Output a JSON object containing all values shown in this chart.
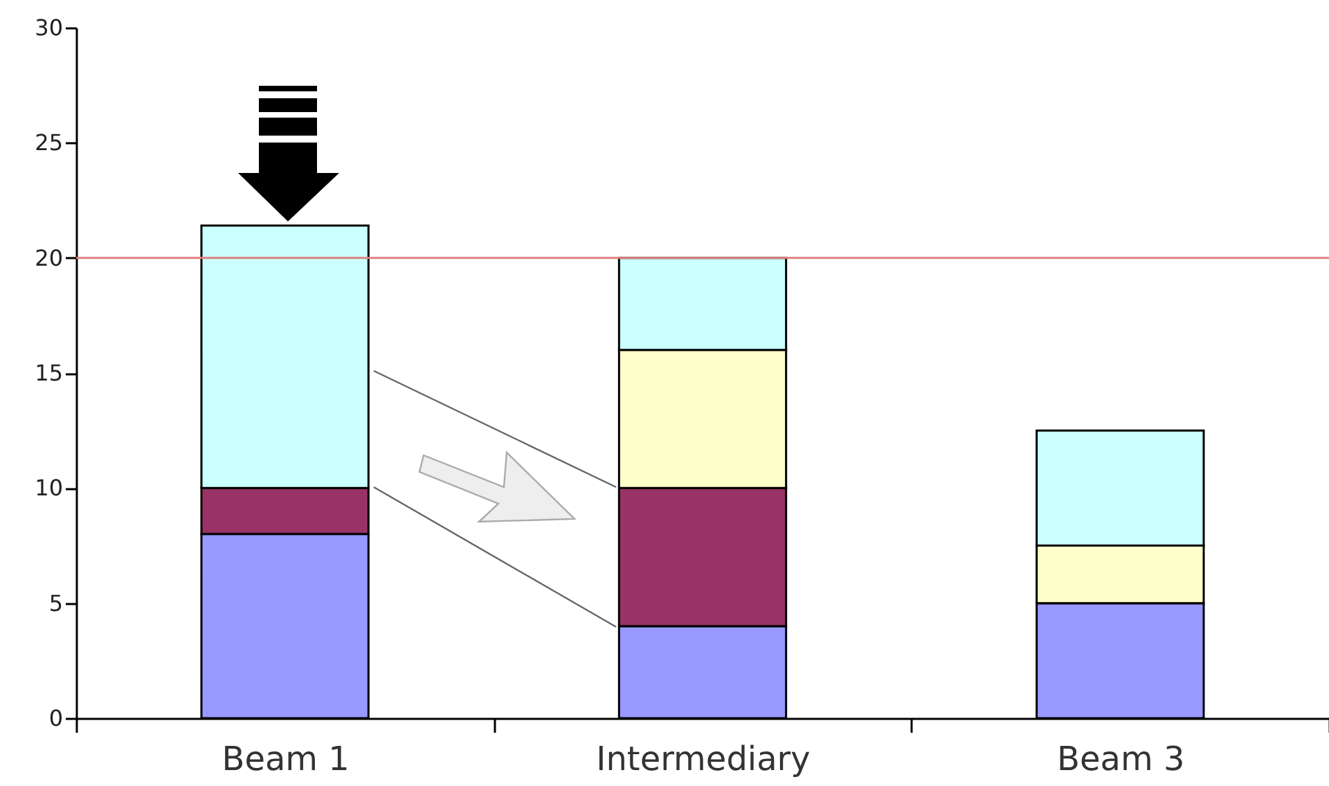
{
  "chart_data": {
    "type": "bar",
    "stacked": true,
    "categories": [
      "Beam 1",
      "Intermediary",
      "Beam 3"
    ],
    "series": [
      {
        "color": "#9999ff",
        "values": [
          8,
          4,
          5
        ]
      },
      {
        "color": "#993366",
        "values": [
          2,
          6,
          0
        ]
      },
      {
        "color": "#ffffcc",
        "values": [
          0,
          6,
          2.5
        ]
      },
      {
        "color": "#ccffff",
        "values": [
          11.4,
          4,
          5
        ]
      }
    ],
    "ylim": [
      0,
      30
    ],
    "yticks": [
      0,
      5,
      10,
      15,
      20,
      25,
      30
    ],
    "ref_lines": [
      {
        "axis": "y",
        "value": 20,
        "color": "#e08080"
      }
    ],
    "grid": false
  }
}
